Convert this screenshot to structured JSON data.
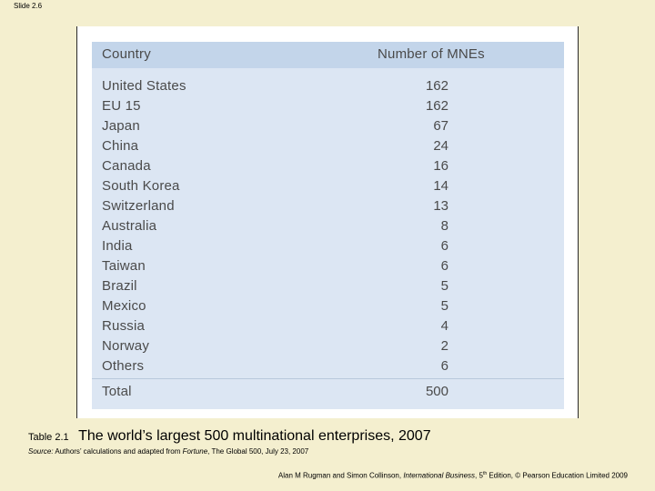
{
  "slide": {
    "label": "Slide 2.6"
  },
  "table": {
    "header_country": "Country",
    "header_count": "Number of MNEs",
    "rows": [
      {
        "country": "United States",
        "count": "162"
      },
      {
        "country": "EU 15",
        "count": "162"
      },
      {
        "country": "Japan",
        "count": "67"
      },
      {
        "country": "China",
        "count": "24"
      },
      {
        "country": "Canada",
        "count": "16"
      },
      {
        "country": "South Korea",
        "count": "14"
      },
      {
        "country": "Switzerland",
        "count": "13"
      },
      {
        "country": "Australia",
        "count": "8"
      },
      {
        "country": "India",
        "count": "6"
      },
      {
        "country": "Taiwan",
        "count": "6"
      },
      {
        "country": "Brazil",
        "count": "5"
      },
      {
        "country": "Mexico",
        "count": "5"
      },
      {
        "country": "Russia",
        "count": "4"
      },
      {
        "country": "Norway",
        "count": "2"
      },
      {
        "country": "Others",
        "count": "6"
      }
    ],
    "total_label": "Total",
    "total_value": "500"
  },
  "caption": {
    "label": "Table 2.1",
    "title": "The world’s largest 500 multinational enterprises, 2007"
  },
  "source": {
    "prefix": "Source:",
    "text_a": "Authors’ calculations and adapted from ",
    "publication": "Fortune",
    "text_b": ", The Global 500, July 23, 2007"
  },
  "footer": {
    "authors": "Alan M Rugman and Simon Collinson, ",
    "book": "International Business",
    "edition_num": ", 5",
    "edition_sup": "th",
    "rest": " Edition, © Pearson Education Limited 2009"
  }
}
